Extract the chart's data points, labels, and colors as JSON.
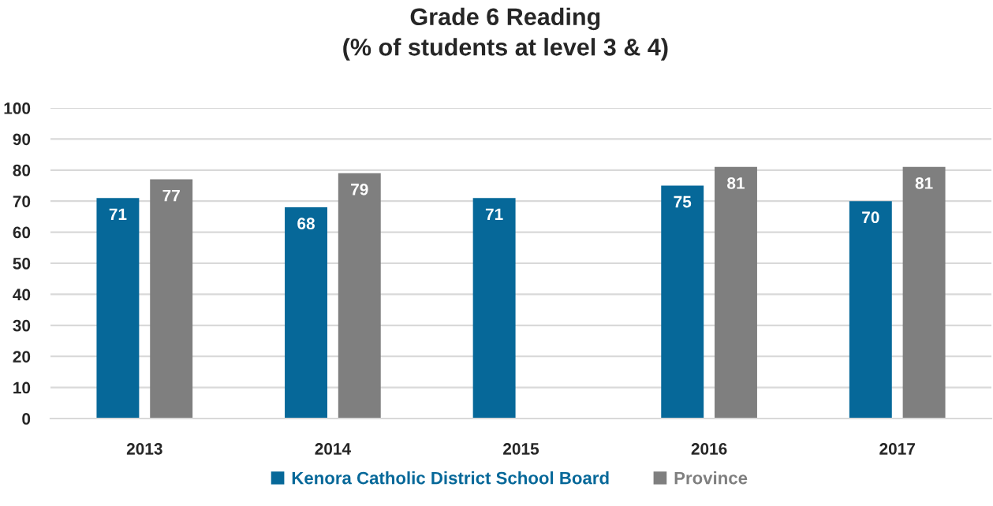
{
  "chart_data": {
    "type": "bar",
    "title": "Grade 6 Reading\n(% of students at level 3 & 4)",
    "categories": [
      "2013",
      "2014",
      "2015",
      "2016",
      "2017"
    ],
    "series": [
      {
        "name": "Kenora Catholic District School Board",
        "color": "#066899",
        "values": [
          71,
          68,
          71,
          75,
          70
        ]
      },
      {
        "name": "Province",
        "color": "#7f7f7f",
        "values": [
          77,
          79,
          null,
          81,
          81
        ]
      }
    ],
    "ylim": [
      0,
      100
    ],
    "yticks": [
      0,
      10,
      20,
      30,
      40,
      50,
      60,
      70,
      80,
      90,
      100
    ],
    "grid": "y",
    "legend": "bottom",
    "data_labels": true
  }
}
